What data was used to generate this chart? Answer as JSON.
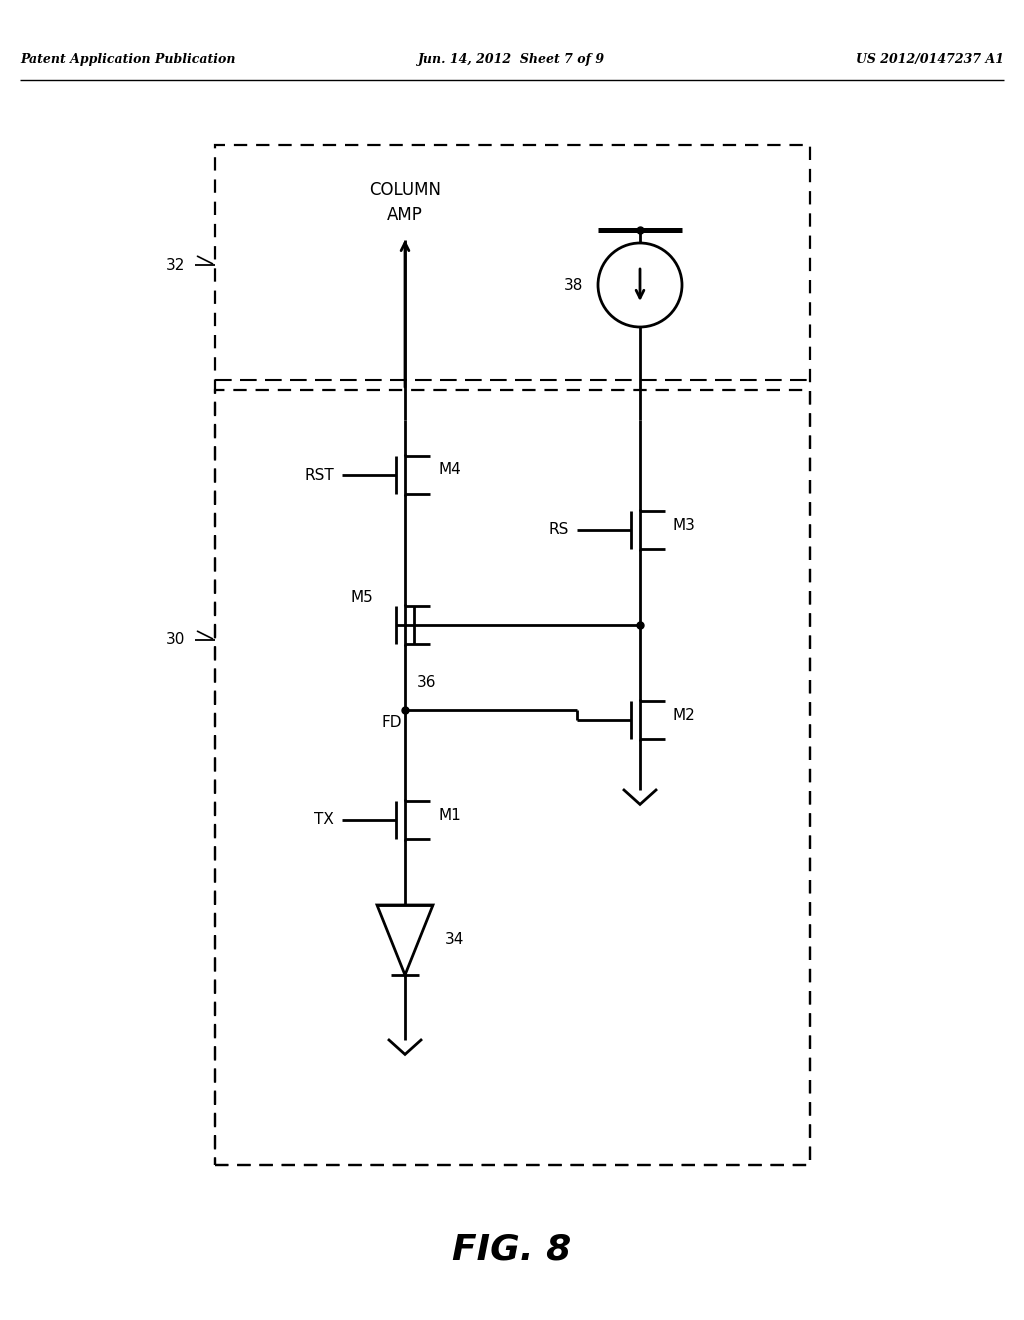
{
  "title": "FIG. 8",
  "header_left": "Patent Application Publication",
  "header_center": "Jun. 14, 2012  Sheet 7 of 9",
  "header_right": "US 2012/0147237 A1",
  "bg_color": "#ffffff",
  "line_color": "#000000",
  "fig_width": 10.24,
  "fig_height": 13.2,
  "dpi": 100
}
